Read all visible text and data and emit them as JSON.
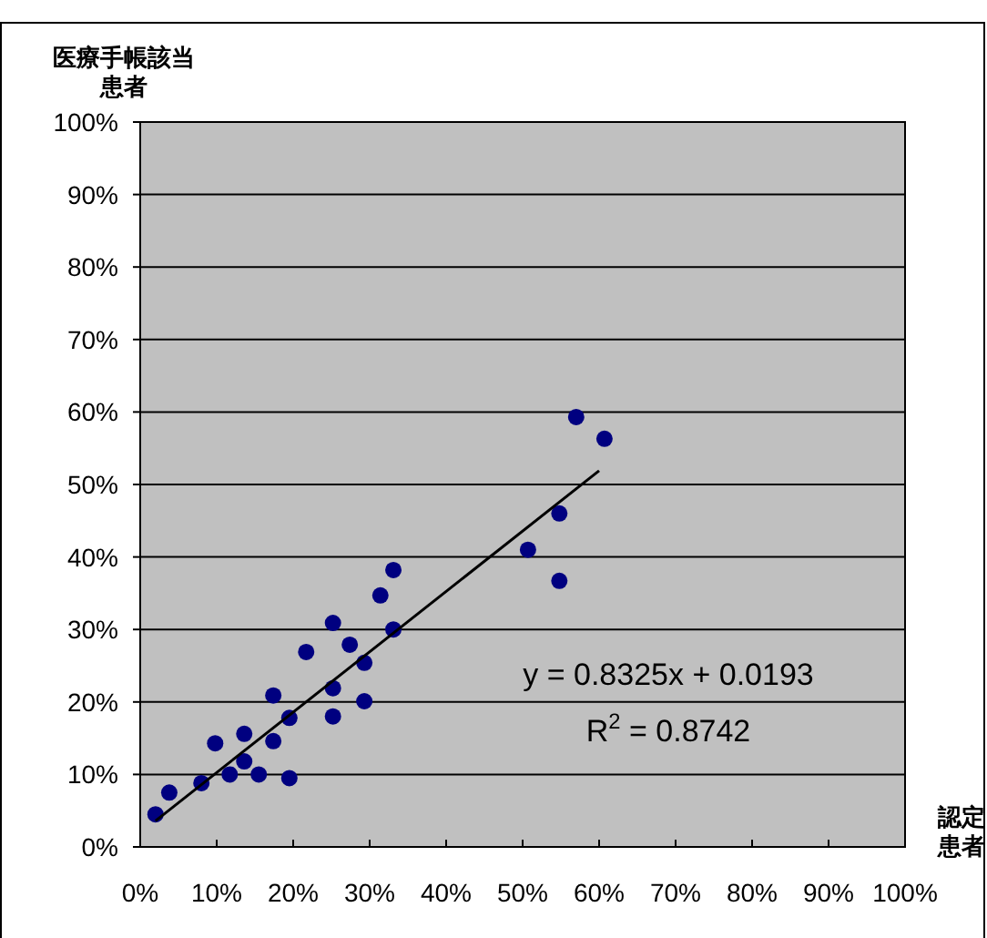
{
  "chart_data": {
    "type": "scatter",
    "xlabel": "認定患者",
    "ylabel": "医療手帳該当患者",
    "xlim": [
      0,
      100
    ],
    "ylim": [
      0,
      100
    ],
    "xticks": [
      {
        "value": 0,
        "label": "0%"
      },
      {
        "value": 10,
        "label": "10%"
      },
      {
        "value": 20,
        "label": "20%"
      },
      {
        "value": 30,
        "label": "30%"
      },
      {
        "value": 40,
        "label": "40%"
      },
      {
        "value": 50,
        "label": "50%"
      },
      {
        "value": 60,
        "label": "60%"
      },
      {
        "value": 70,
        "label": "70%"
      },
      {
        "value": 80,
        "label": "80%"
      },
      {
        "value": 90,
        "label": "90%"
      },
      {
        "value": 100,
        "label": "100%"
      }
    ],
    "yticks": [
      {
        "value": 0,
        "label": "0%"
      },
      {
        "value": 10,
        "label": "10%"
      },
      {
        "value": 20,
        "label": "20%"
      },
      {
        "value": 30,
        "label": "30%"
      },
      {
        "value": 40,
        "label": "40%"
      },
      {
        "value": 50,
        "label": "50%"
      },
      {
        "value": 60,
        "label": "60%"
      },
      {
        "value": 70,
        "label": "70%"
      },
      {
        "value": 80,
        "label": "80%"
      },
      {
        "value": 90,
        "label": "90%"
      },
      {
        "value": 100,
        "label": "100%"
      }
    ],
    "grid": "y",
    "series": [
      {
        "marker": "circle",
        "color": "#000080",
        "x": [
          2,
          3.8,
          8,
          9.8,
          11.7,
          13.6,
          13.6,
          15.5,
          17.4,
          17.4,
          19.5,
          19.5,
          21.7,
          25.2,
          25.2,
          25.2,
          27.4,
          29.3,
          29.3,
          31.4,
          33.1,
          33.1,
          50.7,
          54.8,
          54.8,
          57,
          60.7
        ],
        "values": [
          4.5,
          7.5,
          8.8,
          14.3,
          10,
          11.8,
          15.6,
          10,
          14.6,
          20.9,
          17.8,
          9.5,
          26.9,
          18,
          21.9,
          30.9,
          27.9,
          25.4,
          20.1,
          34.7,
          38.2,
          30,
          41,
          46,
          36.7,
          59.3,
          56.3
        ]
      },
      {
        "type": "line",
        "color": "#000000",
        "x": [
          2,
          60
        ],
        "values": [
          3.6,
          51.9
        ]
      }
    ],
    "annotations": [
      "y = 0.8325x + 0.0193",
      "R$^{2}$ = 0.8742"
    ]
  }
}
